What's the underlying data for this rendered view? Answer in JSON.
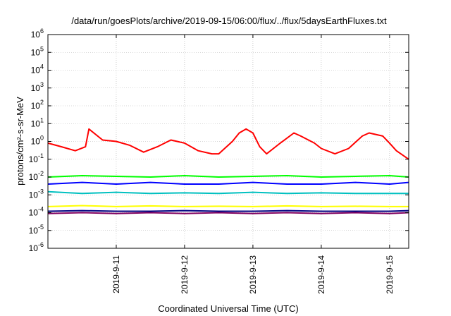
{
  "chart_data": {
    "type": "line",
    "title": "/data/run/goesPlots/archive/2019-09-15/06:00/flux/../flux/5daysEarthFluxes.txt",
    "xlabel": "Coordinated Universal Time (UTC)",
    "ylabel": "protons/cm²-s-sr-MeV",
    "yscale": "log",
    "ylim": [
      1e-06,
      1000000.0
    ],
    "xlim": [
      0,
      5.28
    ],
    "x_unit": "days since 2019-09-10 00:00 UTC",
    "y_ticks": [
      {
        "base": "10",
        "exp": "6"
      },
      {
        "base": "10",
        "exp": "5"
      },
      {
        "base": "10",
        "exp": "4"
      },
      {
        "base": "10",
        "exp": "3"
      },
      {
        "base": "10",
        "exp": "2"
      },
      {
        "base": "10",
        "exp": "1"
      },
      {
        "base": "10",
        "exp": "0"
      },
      {
        "base": "10",
        "exp": "-1"
      },
      {
        "base": "10",
        "exp": "-2"
      },
      {
        "base": "10",
        "exp": "-3"
      },
      {
        "base": "10",
        "exp": "-4"
      },
      {
        "base": "10",
        "exp": "-5"
      },
      {
        "base": "10",
        "exp": "-6"
      }
    ],
    "x_ticks": [
      {
        "label": "2019-9-11",
        "x": 1
      },
      {
        "label": "2019-9-12",
        "x": 2
      },
      {
        "label": "2019-9-13",
        "x": 3
      },
      {
        "label": "2019-9-14",
        "x": 4
      },
      {
        "label": "2019-9-15",
        "x": 5
      }
    ],
    "grid": true,
    "series": [
      {
        "color": "#ff0000",
        "x": [
          0,
          0.2,
          0.4,
          0.55,
          0.6,
          0.8,
          1.0,
          1.2,
          1.4,
          1.6,
          1.8,
          2.0,
          2.2,
          2.4,
          2.5,
          2.7,
          2.8,
          2.9,
          3.0,
          3.1,
          3.2,
          3.4,
          3.6,
          3.7,
          3.9,
          4.0,
          4.2,
          4.4,
          4.6,
          4.7,
          4.9,
          5.0,
          5.1,
          5.28
        ],
        "y": [
          0.8,
          0.5,
          0.3,
          0.5,
          5,
          1.2,
          1.0,
          0.6,
          0.25,
          0.5,
          1.2,
          0.8,
          0.3,
          0.2,
          0.2,
          1,
          3,
          5,
          3,
          0.5,
          0.2,
          0.8,
          3,
          2,
          0.8,
          0.4,
          0.2,
          0.4,
          2,
          3,
          2,
          0.8,
          0.3,
          0.1
        ]
      },
      {
        "color": "#00ff00",
        "x": [
          0,
          0.5,
          1,
          1.5,
          2,
          2.5,
          3,
          3.5,
          4,
          4.5,
          5,
          5.28
        ],
        "y": [
          0.01,
          0.012,
          0.011,
          0.01,
          0.012,
          0.01,
          0.011,
          0.012,
          0.01,
          0.011,
          0.012,
          0.01
        ]
      },
      {
        "color": "#0000ff",
        "x": [
          0,
          0.5,
          1,
          1.5,
          2,
          2.5,
          3,
          3.5,
          4,
          4.5,
          5,
          5.28
        ],
        "y": [
          0.004,
          0.005,
          0.004,
          0.005,
          0.004,
          0.004,
          0.005,
          0.004,
          0.004,
          0.005,
          0.004,
          0.005
        ]
      },
      {
        "color": "#00c0c0",
        "x": [
          0,
          0.5,
          1,
          1.5,
          2,
          2.5,
          3,
          3.5,
          4,
          4.5,
          5,
          5.28
        ],
        "y": [
          0.0015,
          0.0012,
          0.0014,
          0.0012,
          0.0013,
          0.0012,
          0.0014,
          0.0012,
          0.0013,
          0.0012,
          0.0012,
          0.0012
        ]
      },
      {
        "color": "#ffff00",
        "x": [
          0,
          0.5,
          1,
          1.5,
          2,
          2.5,
          3,
          3.5,
          4,
          4.5,
          5,
          5.28
        ],
        "y": [
          0.00022,
          0.00025,
          0.00022,
          0.00024,
          0.00022,
          0.00023,
          0.00022,
          0.00024,
          0.00022,
          0.00023,
          0.00022,
          0.00022
        ]
      },
      {
        "color": "#000080",
        "x": [
          0,
          0.5,
          1,
          1.5,
          2,
          2.5,
          3,
          3.5,
          4,
          4.5,
          5,
          5.28
        ],
        "y": [
          0.00012,
          0.00013,
          0.00012,
          0.00012,
          0.00013,
          0.00012,
          0.00012,
          0.00013,
          0.00012,
          0.00012,
          0.00012,
          0.00013
        ]
      },
      {
        "color": "#800060",
        "x": [
          0,
          0.5,
          1,
          1.5,
          2,
          2.5,
          3,
          3.5,
          4,
          4.5,
          5,
          5.28
        ],
        "y": [
          9e-05,
          0.0001,
          9e-05,
          0.0001,
          9e-05,
          0.0001,
          9e-05,
          0.0001,
          9e-05,
          0.0001,
          9e-05,
          0.0001
        ]
      }
    ]
  }
}
